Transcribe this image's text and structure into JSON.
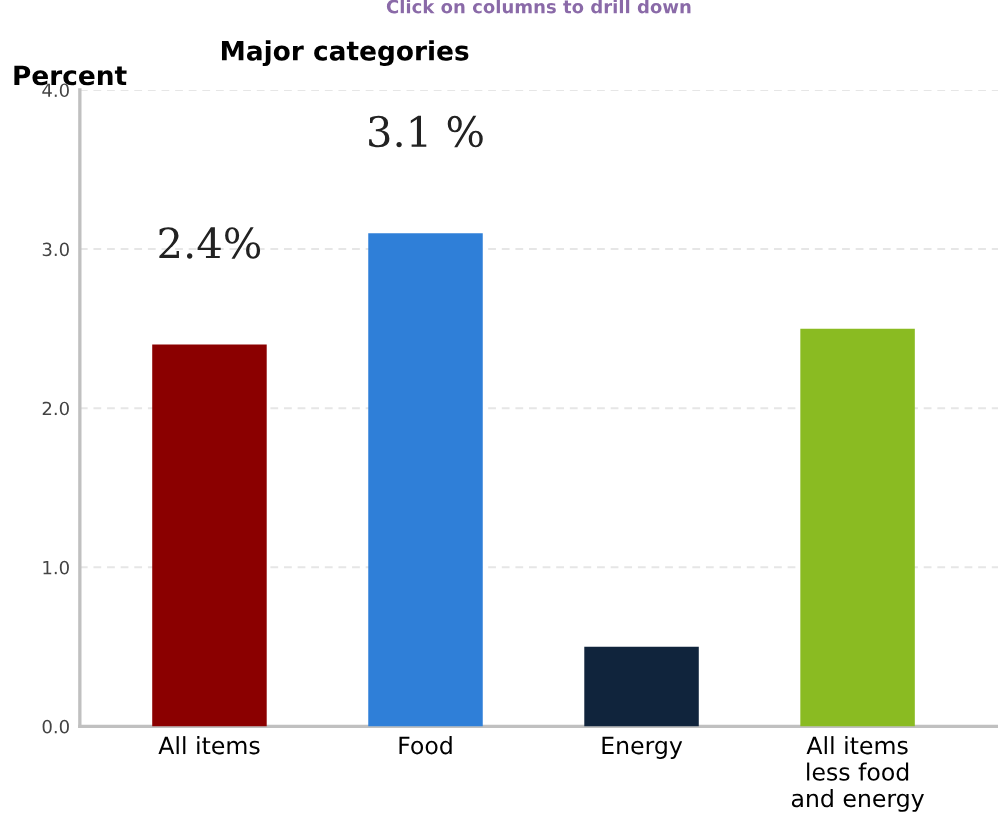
{
  "chart_data": {
    "type": "bar",
    "title": "Major categories",
    "ylabel": "Percent",
    "annotations": [
      "Click on columns to drill down"
    ],
    "categories": [
      "All items",
      "Food",
      "Energy",
      "All items\nless food\nand energy"
    ],
    "values": [
      2.4,
      3.1,
      0.5,
      2.5
    ],
    "colors": [
      "#8b0000",
      "#2f7fd8",
      "#10243c",
      "#8abb22"
    ],
    "value_labels": [
      "2.4%",
      "3.1 %",
      null,
      null
    ],
    "ylim": [
      0,
      4
    ],
    "yticks": [
      {
        "value": 0,
        "label": "0.0"
      },
      {
        "value": 1,
        "label": "1.0"
      },
      {
        "value": 2,
        "label": "2.0"
      },
      {
        "value": 3,
        "label": "3.0"
      },
      {
        "value": 4,
        "label": "4.0"
      }
    ],
    "grid": "y",
    "legend": false
  }
}
